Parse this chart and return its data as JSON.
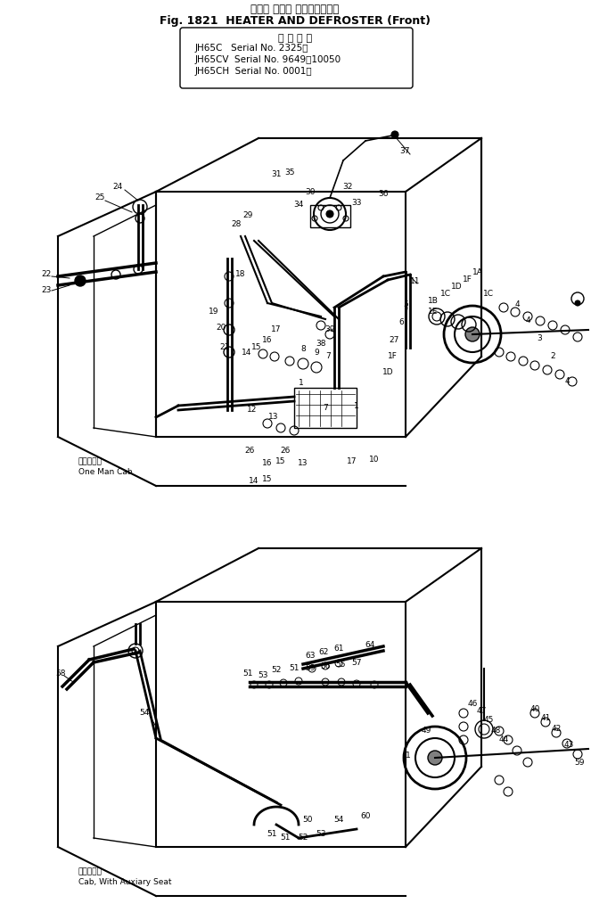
{
  "title_japanese": "ヒータ および デフロスタ（前",
  "title_english": "Fig. 1821  HEATER AND DEFROSTER (Front)",
  "serial_box_title": "適 用 号 機",
  "serial_lines": [
    "JH65C   Serial No. 2325～",
    "JH65CV  Serial No. 9649～10050",
    "JH65CH  Serial No. 0001～"
  ],
  "bg_color": "#ffffff",
  "line_color": "#000000",
  "fig_width": 6.63,
  "fig_height": 10.23
}
